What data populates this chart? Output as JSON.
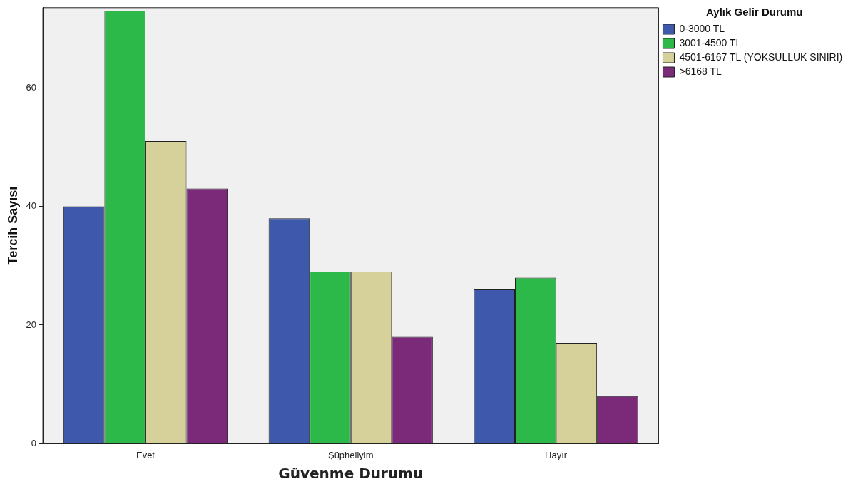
{
  "chart_data": {
    "type": "bar",
    "xlabel": "Güvenme Durumu",
    "ylabel": "Tercih Sayısı",
    "legend_title": "Aylık Gelir Durumu",
    "legend": "right",
    "grid": false,
    "categories": [
      "Evet",
      "Şüpheliyim",
      "Hayır"
    ],
    "series": [
      {
        "name": "0-3000 TL",
        "color": "#3e58ac",
        "values": [
          40,
          38,
          26
        ]
      },
      {
        "name": "3001-4500 TL",
        "color": "#2db84a",
        "values": [
          73,
          29,
          28
        ]
      },
      {
        "name": "4501-6167 TL (YOKSULLUK SINIRI)",
        "color": "#d6d09a",
        "values": [
          51,
          29,
          17
        ]
      },
      {
        "name": ">6168 TL",
        "color": "#7b2a7a",
        "values": [
          43,
          18,
          8
        ]
      }
    ],
    "ylim": [
      0,
      73.5
    ],
    "yticks": [
      0,
      20,
      40,
      60
    ]
  }
}
